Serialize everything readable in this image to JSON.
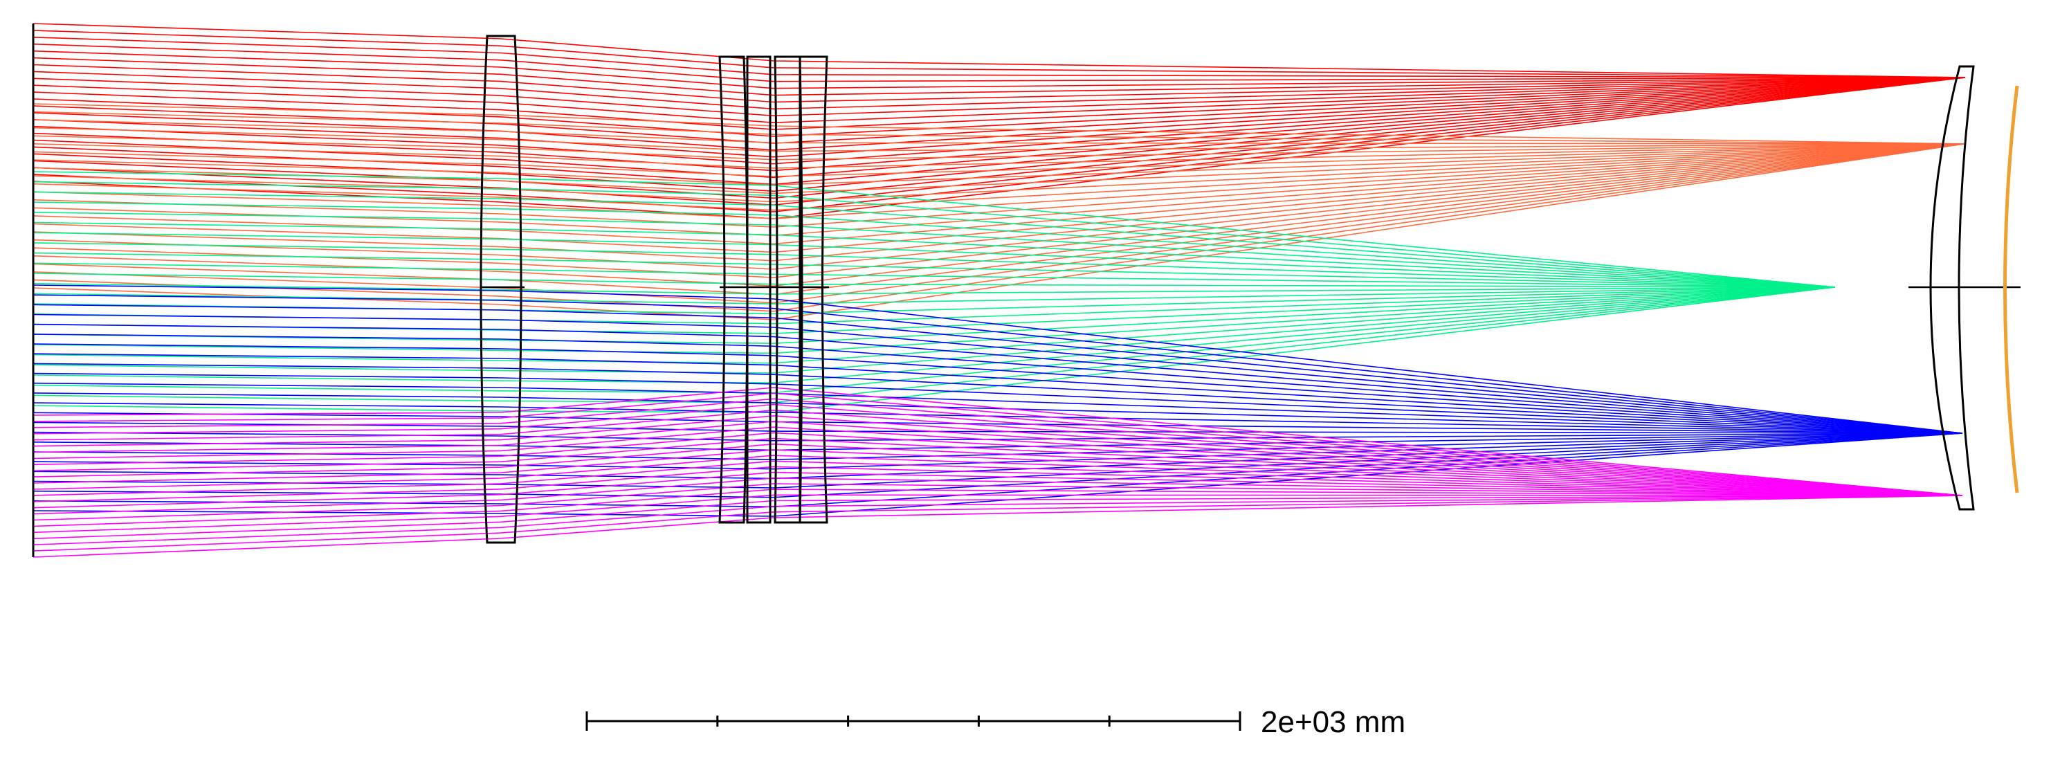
{
  "scale_bar": {
    "label": "2e+03 mm",
    "ticks": 6
  },
  "field_colors": {
    "field_1": "#ff0000",
    "field_2": "#ff6a3d",
    "field_3": "#00f08c",
    "field_4": "#0000ff",
    "field_5": "#ff00ff"
  },
  "detector_color": "#f0a030",
  "element_color": "#000000",
  "elements": [
    {
      "name": "lens-1"
    },
    {
      "name": "lens-2"
    },
    {
      "name": "lens-3"
    },
    {
      "name": "lens-4"
    },
    {
      "name": "lens-5"
    },
    {
      "name": "field-lens"
    },
    {
      "name": "detector"
    }
  ]
}
